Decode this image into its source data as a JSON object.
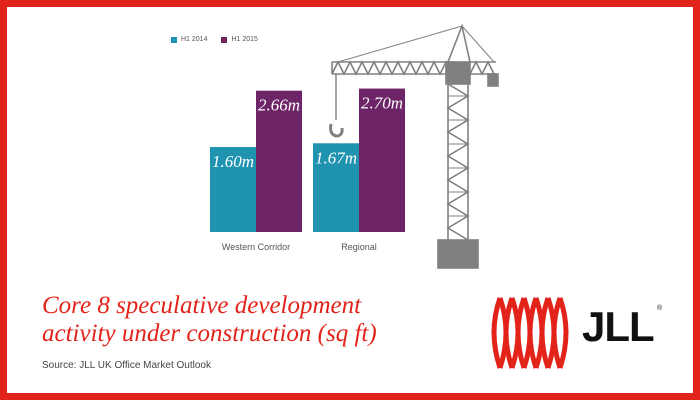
{
  "colors": {
    "border": "#e2231a",
    "h1_2014": "#1f93b0",
    "h1_2015": "#6e2567",
    "crane": "#808080"
  },
  "chart_data": {
    "type": "bar",
    "categories": [
      "Western Corridor",
      "Regional"
    ],
    "series": [
      {
        "name": "H1 2014",
        "values": [
          1.6,
          1.67
        ],
        "labels": [
          "1.60m",
          "1.67m"
        ]
      },
      {
        "name": "H1 2015",
        "values": [
          2.66,
          2.7
        ],
        "labels": [
          "2.66m",
          "2.70m"
        ]
      }
    ],
    "title": "Core 8 speculative development activity under construction (sq ft)",
    "ylim": [
      0,
      3.2
    ],
    "legend": "top-left",
    "grid": false
  },
  "caption": {
    "line1": "Core 8 speculative development",
    "line2": "activity under construction (sq ft)"
  },
  "source": "Source: JLL UK Office Market Outlook",
  "logo": {
    "text": "JLL",
    "registered": "®"
  },
  "decoration": {
    "icon": "tower-crane-icon"
  }
}
